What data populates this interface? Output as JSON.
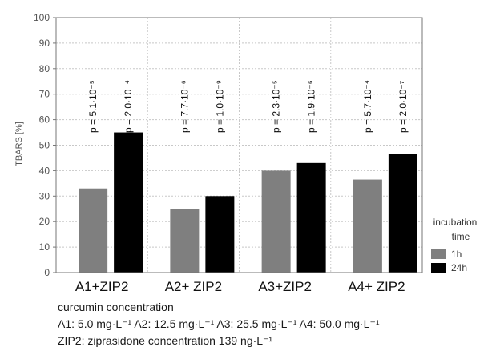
{
  "chart_data": {
    "type": "bar",
    "categories": [
      "A1+ZIP2",
      "A2+ ZIP2",
      "A3+ZIP2",
      "A4+ ZIP2"
    ],
    "series": [
      {
        "name": "1h",
        "values": [
          33,
          25,
          40,
          36.5
        ],
        "color": "#7f7f7f"
      },
      {
        "name": "24h",
        "values": [
          55,
          30,
          43,
          46.5
        ],
        "color": "#000000"
      }
    ],
    "p_values": [
      [
        "p = 5.1·10⁻⁵",
        "p = 2.0·10⁻⁴"
      ],
      [
        "p = 7.7·10⁻⁶",
        "p = 1.0·10⁻⁹"
      ],
      [
        "p = 2.3·10⁻⁵",
        "p = 1.9·10⁻⁶"
      ],
      [
        "p = 5.7·10⁻⁴",
        "p = 2.0·10⁻⁷"
      ]
    ],
    "ylabel": "TBARS [%]",
    "ylim": [
      0,
      100
    ],
    "yticks": [
      0,
      10,
      20,
      30,
      40,
      50,
      60,
      70,
      80,
      90,
      100
    ],
    "grid": true,
    "legend": {
      "title_lines": [
        "incubation",
        "time"
      ],
      "entries": [
        "1h",
        "24h"
      ],
      "placement": "right"
    }
  },
  "notes": {
    "line1": "curcumin concentration",
    "line2": "A1: 5.0 mg·L⁻¹  A2: 12.5 mg·L⁻¹  A3: 25.5 mg·L⁻¹  A4: 50.0 mg·L⁻¹",
    "line3": "ZIP2: ziprasidone concentration 139 ng·L⁻¹"
  }
}
